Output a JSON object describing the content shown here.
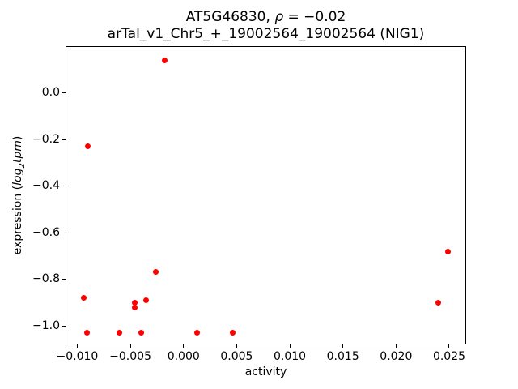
{
  "figure": {
    "title_line1": {
      "prefix": "AT5G46830, ",
      "rho": "ρ",
      "rest": " = −0.02"
    },
    "title_line2": "arTal_v1_Chr5_+_19002564_19002564 (NIG1)",
    "xlabel": "activity",
    "ylabel": {
      "prefix": "expression (",
      "log": "log",
      "sub": "2",
      "word": "tpm",
      "suffix": ")"
    }
  },
  "chart_data": {
    "type": "scatter",
    "title": "AT5G46830, ρ = −0.02\narTal_v1_Chr5_+_19002564_19002564 (NIG1)",
    "xlabel": "activity",
    "ylabel": "expression (log2 tpm)",
    "marker_color": "#ff0000",
    "marker_size_px": 7,
    "grid": false,
    "legend": null,
    "xlim": [
      -0.0111,
      0.0266
    ],
    "ylim": [
      -1.08,
      0.2
    ],
    "x_ticks": [
      -0.01,
      -0.005,
      0.0,
      0.005,
      0.01,
      0.015,
      0.02,
      0.025
    ],
    "x_tick_labels": [
      "−0.010",
      "−0.005",
      "0.000",
      "0.005",
      "0.010",
      "0.015",
      "0.020",
      "0.025"
    ],
    "y_ticks": [
      0.0,
      -0.2,
      -0.4,
      -0.6,
      -0.8,
      -1.0
    ],
    "y_tick_labels": [
      "0.0",
      "−0.2",
      "−0.4",
      "−0.6",
      "−0.8",
      "−1.0"
    ],
    "points": [
      [
        -0.0018,
        0.14
      ],
      [
        -0.009,
        -0.23
      ],
      [
        0.0249,
        -0.68
      ],
      [
        -0.0026,
        -0.77
      ],
      [
        -0.0094,
        -0.88
      ],
      [
        -0.0035,
        -0.89
      ],
      [
        -0.0046,
        -0.9
      ],
      [
        0.024,
        -0.9
      ],
      [
        -0.0046,
        -0.92
      ],
      [
        -0.0091,
        -1.03
      ],
      [
        -0.006,
        -1.03
      ],
      [
        -0.004,
        -1.03
      ],
      [
        0.0013,
        -1.03
      ],
      [
        0.0046,
        -1.03
      ]
    ]
  }
}
